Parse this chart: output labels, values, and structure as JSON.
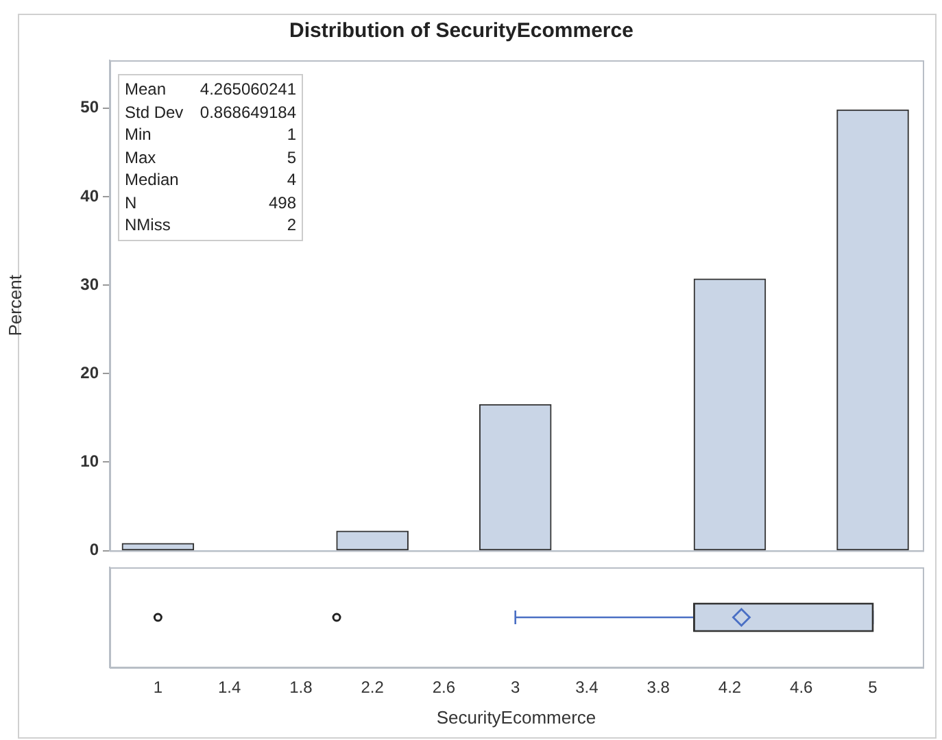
{
  "chart_data": [
    {
      "type": "histogram",
      "title": "Distribution of SecurityEcommerce",
      "ylabel": "Percent",
      "bins": [
        0.8,
        1.2,
        1.6,
        2.0,
        2.4,
        2.8,
        3.2,
        3.6,
        4.0,
        4.4,
        4.8,
        5.2
      ],
      "values": [
        0.8,
        0,
        0,
        2.2,
        0,
        16.5,
        0,
        0,
        30.7,
        0,
        49.8
      ],
      "color": "#c9d5e6",
      "xlim": [
        0.73,
        5.28
      ],
      "ylim": [
        0,
        55.4
      ],
      "yticks": [
        0,
        10,
        20,
        30,
        40,
        50
      ],
      "tick_labels": "y",
      "grid": false,
      "legend": false,
      "annotations": [
        "Mean 4.265060241",
        "Std Dev 0.868649184",
        "Min 1",
        "Max 5",
        "Median 4",
        "N 498",
        "NMiss 2"
      ]
    },
    {
      "type": "box",
      "orientation": "horizontal",
      "categories": [
        null
      ],
      "color": "#c9d5e6",
      "boxes": [
        {
          "low": 3,
          "q1": 4,
          "median": 4,
          "q3": 5,
          "high": 5,
          "mean": 4.265060241,
          "outliers": [
            1,
            2
          ]
        }
      ],
      "xlabel": "SecurityEcommerce",
      "xlim": [
        0.73,
        5.28
      ],
      "xticks": [
        1,
        1.4,
        1.8,
        2.2,
        2.6,
        3,
        3.4,
        3.8,
        4.2,
        4.6,
        5
      ],
      "tick_labels": "x",
      "grid": false,
      "legend": false
    }
  ]
}
